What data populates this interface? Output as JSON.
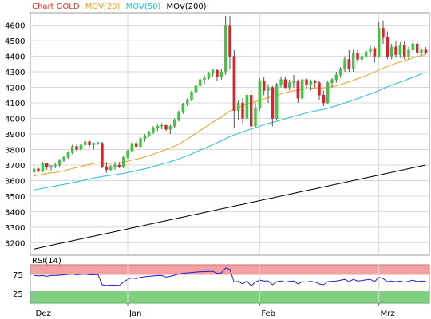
{
  "chart_data": [
    {
      "type": "candlestick",
      "legend": [
        {
          "label": "Chart GOLD",
          "color": "#e0301e"
        },
        {
          "label": "MOV(20)",
          "color": "#f0a020"
        },
        {
          "label": "MOV(50)",
          "color": "#20c0e0"
        },
        {
          "label": "MOV(200)",
          "color": "#000000"
        }
      ],
      "ylim": [
        3120,
        4680
      ],
      "yticks": [
        "4600",
        "4500",
        "4400",
        "4300",
        "4200",
        "4100",
        "4000",
        "3900",
        "3800",
        "3700",
        "3600",
        "3500",
        "3400",
        "3300",
        "3200"
      ],
      "ytick_values": [
        4600,
        4500,
        4400,
        4300,
        4200,
        4100,
        4000,
        3900,
        3800,
        3700,
        3600,
        3500,
        3400,
        3300,
        3200
      ],
      "xticks": [
        {
          "label": "Dez",
          "index": 0
        },
        {
          "label": "Jan",
          "index": 22
        },
        {
          "label": "Feb",
          "index": 53
        },
        {
          "label": "Mrz",
          "index": 81
        }
      ],
      "series_count": 93,
      "candles": [
        [
          3655,
          3700,
          3640,
          3675
        ],
        [
          3675,
          3690,
          3650,
          3660
        ],
        [
          3660,
          3720,
          3655,
          3710
        ],
        [
          3710,
          3715,
          3670,
          3685
        ],
        [
          3685,
          3700,
          3665,
          3695
        ],
        [
          3695,
          3710,
          3680,
          3700
        ],
        [
          3700,
          3740,
          3690,
          3730
        ],
        [
          3730,
          3760,
          3720,
          3750
        ],
        [
          3750,
          3790,
          3740,
          3780
        ],
        [
          3780,
          3830,
          3770,
          3820
        ],
        [
          3820,
          3835,
          3790,
          3800
        ],
        [
          3800,
          3840,
          3790,
          3830
        ],
        [
          3830,
          3870,
          3820,
          3850
        ],
        [
          3850,
          3860,
          3810,
          3830
        ],
        [
          3830,
          3845,
          3800,
          3840
        ],
        [
          3840,
          3850,
          3830,
          3845
        ],
        [
          3840,
          3850,
          3680,
          3690
        ],
        [
          3690,
          3720,
          3650,
          3670
        ],
        [
          3670,
          3700,
          3660,
          3690
        ],
        [
          3690,
          3720,
          3670,
          3700
        ],
        [
          3700,
          3720,
          3680,
          3690
        ],
        [
          3690,
          3760,
          3680,
          3750
        ],
        [
          3750,
          3800,
          3740,
          3790
        ],
        [
          3790,
          3850,
          3780,
          3840
        ],
        [
          3840,
          3860,
          3810,
          3820
        ],
        [
          3820,
          3880,
          3810,
          3870
        ],
        [
          3870,
          3900,
          3850,
          3890
        ],
        [
          3890,
          3920,
          3880,
          3910
        ],
        [
          3910,
          3950,
          3900,
          3940
        ],
        [
          3940,
          3960,
          3920,
          3950
        ],
        [
          3950,
          3970,
          3930,
          3955
        ],
        [
          3955,
          3960,
          3920,
          3930
        ],
        [
          3930,
          3960,
          3900,
          3950
        ],
        [
          3950,
          4000,
          3940,
          3990
        ],
        [
          3990,
          4050,
          3980,
          4040
        ],
        [
          4040,
          4100,
          4030,
          4090
        ],
        [
          4090,
          4130,
          4080,
          4120
        ],
        [
          4120,
          4180,
          4110,
          4170
        ],
        [
          4170,
          4220,
          4160,
          4210
        ],
        [
          4210,
          4260,
          4200,
          4250
        ],
        [
          4250,
          4280,
          4220,
          4260
        ],
        [
          4260,
          4300,
          4250,
          4290
        ],
        [
          4290,
          4320,
          4270,
          4310
        ],
        [
          4310,
          4320,
          4240,
          4270
        ],
        [
          4270,
          4320,
          4250,
          4300
        ],
        [
          4300,
          4660,
          4280,
          4600
        ],
        [
          4600,
          4660,
          4320,
          4400
        ],
        [
          4400,
          4440,
          3940,
          4050
        ],
        [
          4050,
          4120,
          3990,
          4100
        ],
        [
          4100,
          4130,
          3970,
          4000
        ],
        [
          4000,
          4160,
          3980,
          4150
        ],
        [
          4150,
          4180,
          3700,
          3950
        ],
        [
          3950,
          4100,
          3940,
          4070
        ],
        [
          4070,
          4260,
          4050,
          4240
        ],
        [
          4240,
          4270,
          4150,
          4180
        ],
        [
          4180,
          4220,
          4100,
          4200
        ],
        [
          4200,
          4210,
          3950,
          4000
        ],
        [
          4000,
          4230,
          3990,
          4220
        ],
        [
          4220,
          4270,
          4200,
          4250
        ],
        [
          4250,
          4270,
          4190,
          4200
        ],
        [
          4200,
          4250,
          4180,
          4230
        ],
        [
          4230,
          4280,
          4200,
          4240
        ],
        [
          4240,
          4250,
          4100,
          4130
        ],
        [
          4130,
          4260,
          4120,
          4250
        ],
        [
          4250,
          4260,
          4190,
          4220
        ],
        [
          4220,
          4250,
          4180,
          4240
        ],
        [
          4240,
          4250,
          4200,
          4230
        ],
        [
          4230,
          4240,
          4120,
          4150
        ],
        [
          4150,
          4180,
          4080,
          4100
        ],
        [
          4100,
          4240,
          4090,
          4230
        ],
        [
          4230,
          4260,
          4200,
          4250
        ],
        [
          4250,
          4300,
          4230,
          4280
        ],
        [
          4280,
          4330,
          4260,
          4320
        ],
        [
          4320,
          4400,
          4300,
          4380
        ],
        [
          4380,
          4440,
          4300,
          4320
        ],
        [
          4320,
          4440,
          4300,
          4420
        ],
        [
          4420,
          4440,
          4360,
          4380
        ],
        [
          4380,
          4420,
          4360,
          4400
        ],
        [
          4400,
          4440,
          4380,
          4430
        ],
        [
          4430,
          4470,
          4400,
          4450
        ],
        [
          4450,
          4460,
          4360,
          4400
        ],
        [
          4400,
          4620,
          4390,
          4580
        ],
        [
          4580,
          4630,
          4480,
          4520
        ],
        [
          4520,
          4560,
          4380,
          4400
        ],
        [
          4400,
          4480,
          4380,
          4460
        ],
        [
          4460,
          4500,
          4390,
          4410
        ],
        [
          4410,
          4490,
          4390,
          4470
        ],
        [
          4470,
          4500,
          4380,
          4400
        ],
        [
          4400,
          4460,
          4380,
          4440
        ],
        [
          4440,
          4510,
          4420,
          4480
        ],
        [
          4480,
          4500,
          4390,
          4420
        ],
        [
          4420,
          4450,
          4400,
          4440
        ],
        [
          4440,
          4460,
          4410,
          4420
        ]
      ],
      "ma20": [
        3630,
        3635,
        3640,
        3645,
        3650,
        3652,
        3658,
        3664,
        3670,
        3678,
        3684,
        3690,
        3698,
        3704,
        3710,
        3714,
        3712,
        3710,
        3710,
        3712,
        3714,
        3718,
        3724,
        3732,
        3738,
        3744,
        3752,
        3760,
        3770,
        3780,
        3790,
        3800,
        3810,
        3822,
        3836,
        3852,
        3868,
        3886,
        3904,
        3922,
        3940,
        3958,
        3976,
        3992,
        4008,
        4030,
        4048,
        4058,
        4070,
        4080,
        4092,
        4100,
        4108,
        4118,
        4126,
        4134,
        4138,
        4148,
        4158,
        4166,
        4172,
        4178,
        4180,
        4186,
        4190,
        4194,
        4196,
        4196,
        4196,
        4200,
        4204,
        4210,
        4218,
        4228,
        4236,
        4246,
        4256,
        4266,
        4276,
        4288,
        4298,
        4312,
        4324,
        4334,
        4346,
        4354,
        4364,
        4372,
        4380,
        4390,
        4398,
        4406,
        4412
      ],
      "ma50": [
        3540,
        3545,
        3550,
        3555,
        3560,
        3565,
        3570,
        3575,
        3580,
        3586,
        3592,
        3598,
        3604,
        3610,
        3616,
        3622,
        3626,
        3630,
        3634,
        3638,
        3642,
        3646,
        3652,
        3658,
        3664,
        3670,
        3676,
        3682,
        3690,
        3698,
        3706,
        3714,
        3722,
        3730,
        3740,
        3750,
        3760,
        3772,
        3784,
        3796,
        3808,
        3820,
        3832,
        3844,
        3856,
        3870,
        3884,
        3894,
        3904,
        3914,
        3924,
        3932,
        3940,
        3950,
        3960,
        3968,
        3974,
        3982,
        3990,
        3998,
        4006,
        4014,
        4020,
        4028,
        4036,
        4042,
        4048,
        4054,
        4058,
        4066,
        4074,
        4082,
        4090,
        4100,
        4108,
        4118,
        4128,
        4138,
        4148,
        4158,
        4168,
        4180,
        4192,
        4204,
        4214,
        4224,
        4234,
        4244,
        4254,
        4264,
        4276,
        4288,
        4296
      ],
      "ma200_start": 3160,
      "ma200_end": 3700
    },
    {
      "type": "line",
      "title": "RSI(14)",
      "ylim": [
        0,
        100
      ],
      "yticks": [
        "75",
        "25"
      ],
      "ytick_values": [
        75,
        25
      ],
      "overbought": 75,
      "oversold": 30,
      "values": [
        72,
        71,
        72,
        70,
        72,
        72,
        73,
        74,
        75,
        76,
        74,
        75,
        76,
        74,
        74,
        75,
        48,
        46,
        47,
        47,
        46,
        55,
        62,
        66,
        64,
        67,
        69,
        70,
        71,
        72,
        72,
        68,
        70,
        73,
        76,
        78,
        79,
        80,
        81,
        82,
        82,
        83,
        83,
        78,
        79,
        92,
        88,
        55,
        57,
        50,
        58,
        45,
        55,
        60,
        58,
        58,
        48,
        56,
        58,
        55,
        57,
        58,
        50,
        56,
        55,
        57,
        55,
        50,
        48,
        56,
        57,
        58,
        60,
        62,
        56,
        62,
        58,
        59,
        61,
        62,
        56,
        68,
        64,
        56,
        58,
        56,
        58,
        55,
        57,
        60,
        56,
        58,
        57
      ]
    }
  ]
}
